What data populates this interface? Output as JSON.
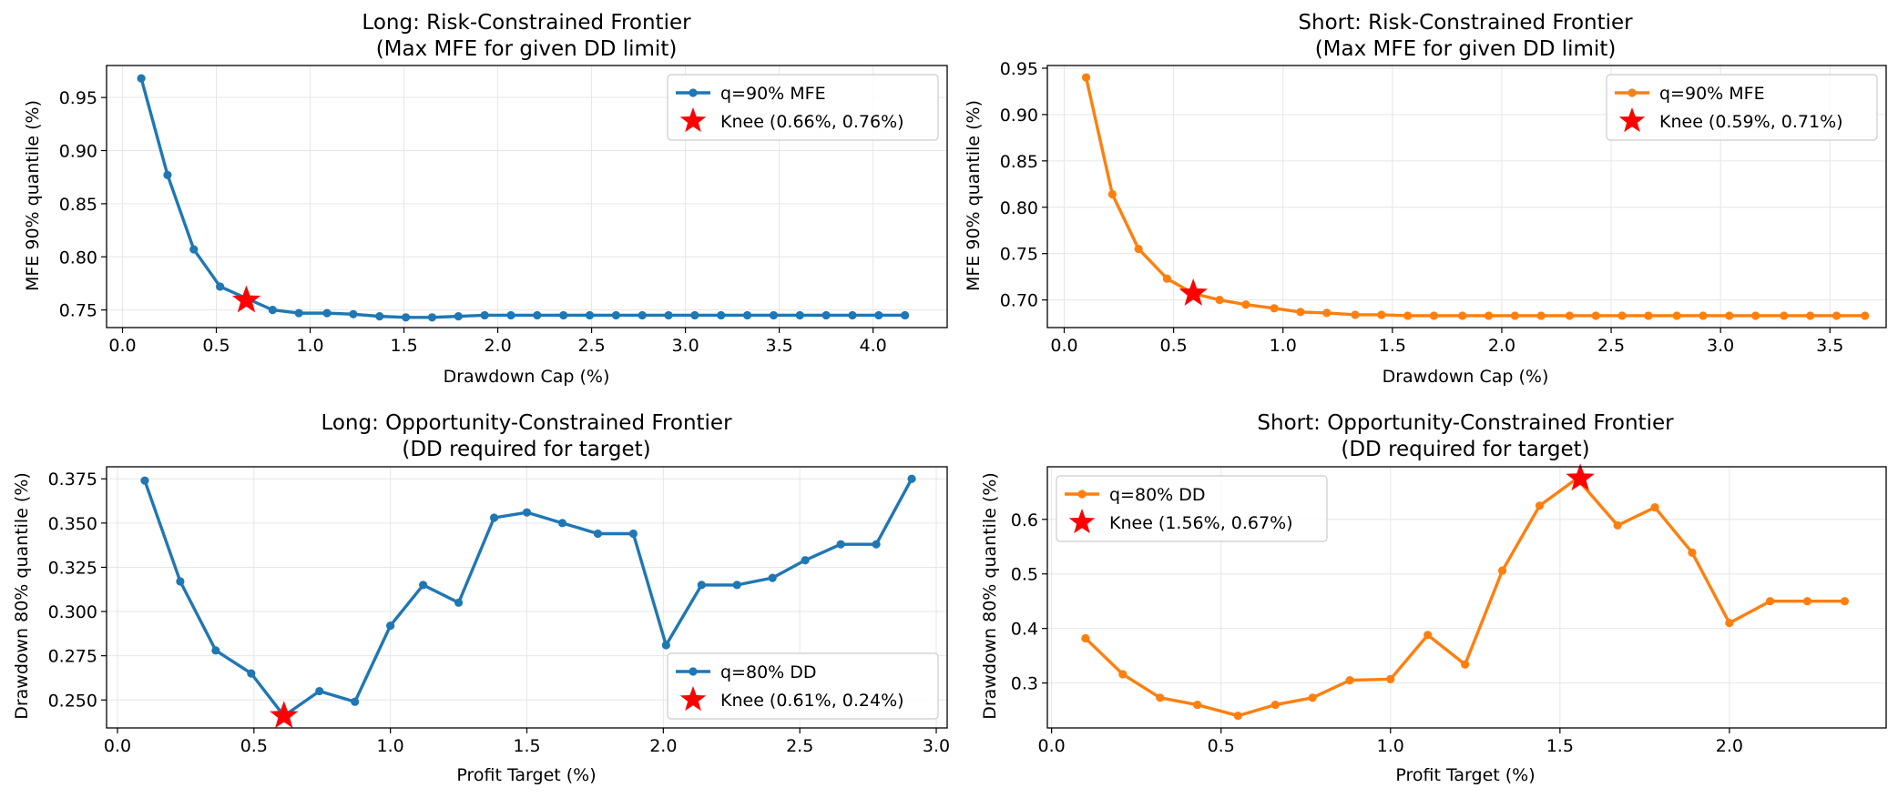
{
  "colors": {
    "long": "#1f77b4",
    "short": "#ff7f0e",
    "knee": "#ff0000",
    "grid": "#e6e6e6"
  },
  "chart_data": [
    {
      "type": "line",
      "title_line1": "Long: Risk-Constrained Frontier",
      "title_line2": "(Max MFE for given DD limit)",
      "xlabel": "Drawdown Cap (%)",
      "ylabel": "MFE 90% quantile (%)",
      "xlim": [
        -0.085,
        4.395
      ],
      "ylim": [
        0.7334,
        0.9801
      ],
      "xticks": [
        0.0,
        0.5,
        1.0,
        1.5,
        2.0,
        2.5,
        3.0,
        3.5,
        4.0
      ],
      "xtick_labels": [
        "0.0",
        "0.5",
        "1.0",
        "1.5",
        "2.0",
        "2.5",
        "3.0",
        "3.5",
        "4.0"
      ],
      "yticks": [
        0.75,
        0.8,
        0.85,
        0.9,
        0.95
      ],
      "ytick_labels": [
        "0.75",
        "0.80",
        "0.85",
        "0.90",
        "0.95"
      ],
      "color_key": "long",
      "legend_position": "top-right",
      "series": [
        {
          "name": "q=90% MFE",
          "x": [
            0.1,
            0.24,
            0.38,
            0.52,
            0.66,
            0.8,
            0.94,
            1.09,
            1.23,
            1.37,
            1.51,
            1.65,
            1.79,
            1.93,
            2.07,
            2.21,
            2.35,
            2.49,
            2.63,
            2.77,
            2.91,
            3.05,
            3.19,
            3.33,
            3.47,
            3.61,
            3.75,
            3.89,
            4.03,
            4.17
          ],
          "y": [
            0.968,
            0.877,
            0.807,
            0.772,
            0.761,
            0.75,
            0.747,
            0.747,
            0.746,
            0.744,
            0.743,
            0.743,
            0.744,
            0.745,
            0.745,
            0.745,
            0.745,
            0.745,
            0.745,
            0.745,
            0.745,
            0.745,
            0.745,
            0.745,
            0.745,
            0.745,
            0.745,
            0.745,
            0.745,
            0.745
          ]
        }
      ],
      "knee": {
        "label": "Knee (0.66%, 0.76%)",
        "x": 0.66,
        "y": 0.759
      }
    },
    {
      "type": "line",
      "title_line1": "Short: Risk-Constrained Frontier",
      "title_line2": "(Max MFE for given DD limit)",
      "xlabel": "Drawdown Cap (%)",
      "ylabel": "MFE 90% quantile (%)",
      "xlim": [
        -0.077,
        3.757
      ],
      "ylim": [
        0.6702,
        0.9529
      ],
      "xticks": [
        0.0,
        0.5,
        1.0,
        1.5,
        2.0,
        2.5,
        3.0,
        3.5
      ],
      "xtick_labels": [
        "0.0",
        "0.5",
        "1.0",
        "1.5",
        "2.0",
        "2.5",
        "3.0",
        "3.5"
      ],
      "yticks": [
        0.7,
        0.75,
        0.8,
        0.85,
        0.9,
        0.95
      ],
      "ytick_labels": [
        "0.70",
        "0.75",
        "0.80",
        "0.85",
        "0.90",
        "0.95"
      ],
      "color_key": "short",
      "legend_position": "top-right",
      "series": [
        {
          "name": "q=90% MFE",
          "x": [
            0.1,
            0.22,
            0.34,
            0.47,
            0.59,
            0.71,
            0.83,
            0.96,
            1.08,
            1.2,
            1.33,
            1.45,
            1.57,
            1.69,
            1.82,
            1.94,
            2.06,
            2.18,
            2.31,
            2.43,
            2.55,
            2.67,
            2.8,
            2.92,
            3.04,
            3.16,
            3.29,
            3.41,
            3.53,
            3.66
          ],
          "y": [
            0.94,
            0.814,
            0.755,
            0.723,
            0.707,
            0.7,
            0.695,
            0.691,
            0.687,
            0.686,
            0.684,
            0.684,
            0.683,
            0.683,
            0.683,
            0.683,
            0.683,
            0.683,
            0.683,
            0.683,
            0.683,
            0.683,
            0.683,
            0.683,
            0.683,
            0.683,
            0.683,
            0.683,
            0.683,
            0.683
          ]
        }
      ],
      "knee": {
        "label": "Knee (0.59%, 0.71%)",
        "x": 0.59,
        "y": 0.707
      }
    },
    {
      "type": "line",
      "title_line1": "Long: Opportunity-Constrained Frontier",
      "title_line2": "(DD required for target)",
      "xlabel": "Profit Target (%)",
      "ylabel": "Drawdown 80% quantile (%)",
      "xlim": [
        -0.04,
        3.04
      ],
      "ylim": [
        0.2342,
        0.3818
      ],
      "xticks": [
        0.0,
        0.5,
        1.0,
        1.5,
        2.0,
        2.5,
        3.0
      ],
      "xtick_labels": [
        "0.0",
        "0.5",
        "1.0",
        "1.5",
        "2.0",
        "2.5",
        "3.0"
      ],
      "yticks": [
        0.25,
        0.275,
        0.3,
        0.325,
        0.35,
        0.375
      ],
      "ytick_labels": [
        "0.250",
        "0.275",
        "0.300",
        "0.325",
        "0.350",
        "0.375"
      ],
      "color_key": "long",
      "legend_position": "bottom-right",
      "series": [
        {
          "name": "q=80% DD",
          "x": [
            0.1,
            0.23,
            0.36,
            0.49,
            0.61,
            0.74,
            0.87,
            1.0,
            1.12,
            1.25,
            1.38,
            1.5,
            1.63,
            1.76,
            1.89,
            2.01,
            2.14,
            2.27,
            2.4,
            2.52,
            2.65,
            2.78,
            2.91
          ],
          "y": [
            0.374,
            0.317,
            0.278,
            0.265,
            0.241,
            0.255,
            0.249,
            0.292,
            0.315,
            0.305,
            0.353,
            0.356,
            0.35,
            0.344,
            0.344,
            0.281,
            0.315,
            0.315,
            0.319,
            0.329,
            0.338,
            0.338,
            0.375
          ]
        }
      ],
      "knee": {
        "label": "Knee (0.61%, 0.24%)",
        "x": 0.61,
        "y": 0.241
      }
    },
    {
      "type": "line",
      "title_line1": "Short: Opportunity-Constrained Frontier",
      "title_line2": "(DD required for target)",
      "xlabel": "Profit Target (%)",
      "ylabel": "Drawdown 80% quantile (%)",
      "xlim": [
        -0.0125,
        2.4625
      ],
      "ylim": [
        0.2176,
        0.6964
      ],
      "xticks": [
        0.0,
        0.5,
        1.0,
        1.5,
        2.0
      ],
      "xtick_labels": [
        "0.0",
        "0.5",
        "1.0",
        "1.5",
        "2.0"
      ],
      "yticks": [
        0.3,
        0.4,
        0.5,
        0.6
      ],
      "ytick_labels": [
        "0.3",
        "0.4",
        "0.5",
        "0.6"
      ],
      "color_key": "short",
      "legend_position": "top-left",
      "series": [
        {
          "name": "q=80% DD",
          "x": [
            0.1,
            0.21,
            0.32,
            0.43,
            0.55,
            0.66,
            0.77,
            0.88,
            1.0,
            1.11,
            1.22,
            1.33,
            1.44,
            1.55,
            1.67,
            1.78,
            1.89,
            2.0,
            2.12,
            2.23,
            2.34
          ],
          "y": [
            0.382,
            0.316,
            0.273,
            0.26,
            0.24,
            0.26,
            0.273,
            0.305,
            0.307,
            0.388,
            0.334,
            0.506,
            0.625,
            0.675,
            0.589,
            0.622,
            0.539,
            0.41,
            0.45,
            0.45,
            0.45
          ]
        }
      ],
      "knee": {
        "label": "Knee (1.56%, 0.67%)",
        "x": 1.56,
        "y": 0.675
      }
    }
  ]
}
